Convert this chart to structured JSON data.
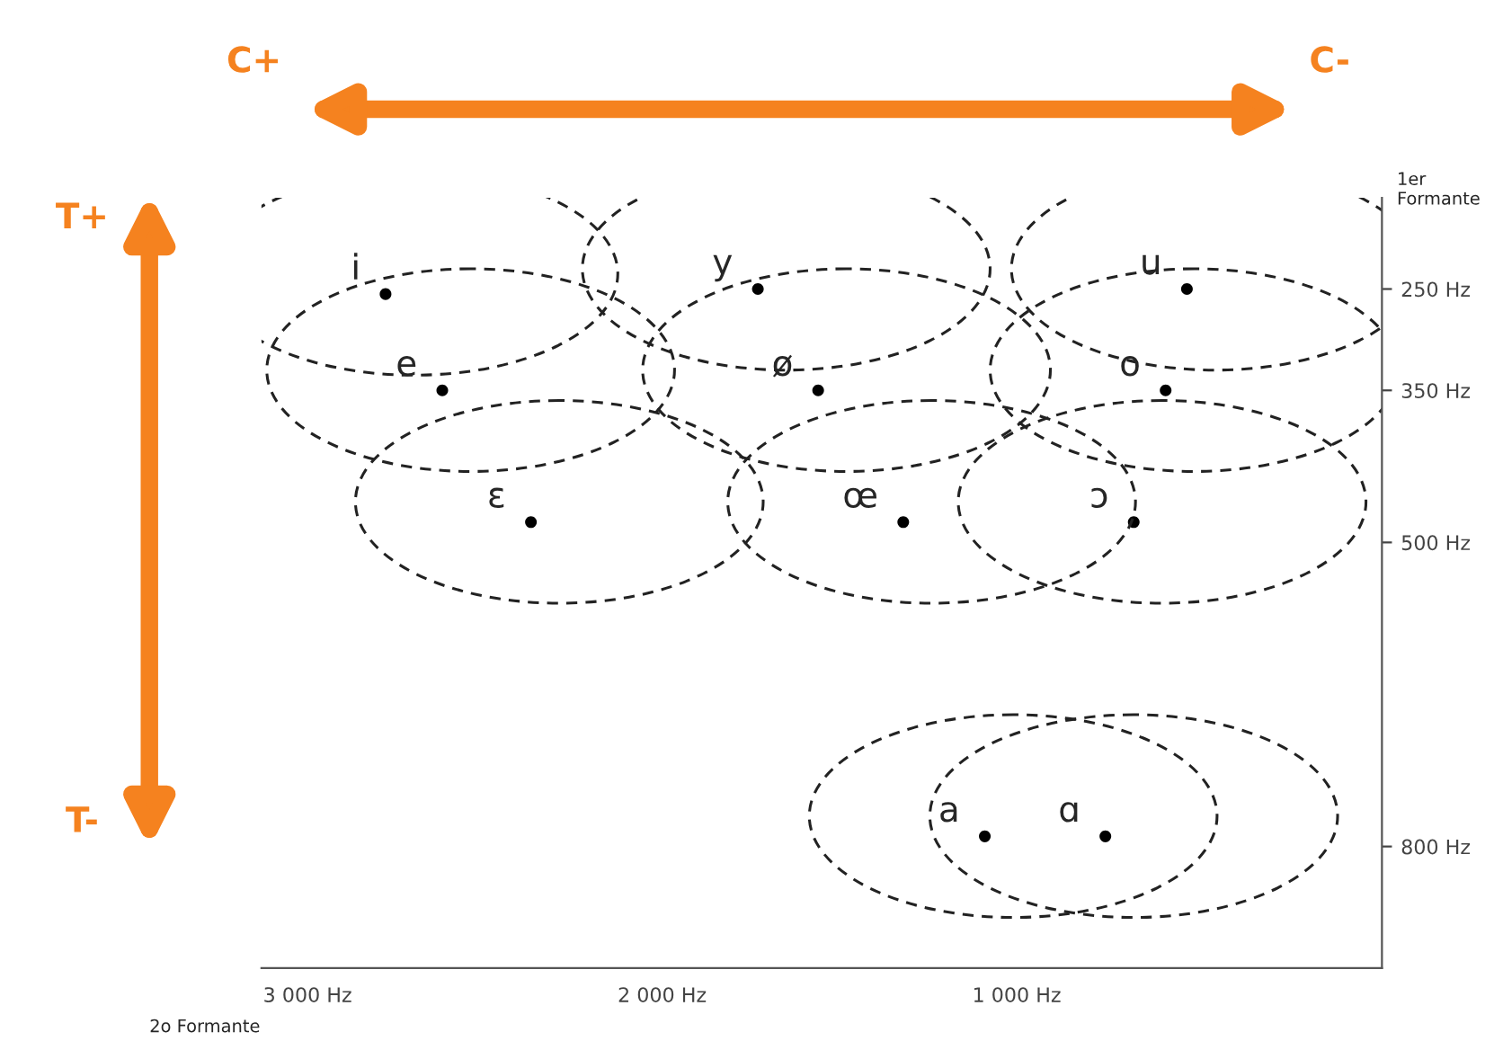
{
  "chart_data": {
    "type": "scatter",
    "xlabel": "2o Formante",
    "ylabel": "1er Formante",
    "x": [
      2780,
      1730,
      520,
      2620,
      1560,
      580,
      2370,
      1320,
      670,
      1090,
      750
    ],
    "series": [
      {
        "color": "#000000",
        "values": [
          255,
          250,
          250,
          350,
          350,
          350,
          480,
          480,
          480,
          790,
          790
        ]
      }
    ],
    "xlim": [
      3130,
      -30
    ],
    "xticks": [
      {
        "value": 3000,
        "label": "3 000 Hz"
      },
      {
        "value": 2000,
        "label": "2 000 Hz"
      },
      {
        "value": 1000,
        "label": "1 000 Hz"
      }
    ],
    "ylim": [
      920,
      160
    ],
    "yticks": [
      {
        "value": 250,
        "label": "250 Hz"
      },
      {
        "value": 350,
        "label": "350 Hz"
      },
      {
        "value": 500,
        "label": "500 Hz"
      },
      {
        "value": 800,
        "label": "800 Hz"
      }
    ],
    "grid": false,
    "legend": false,
    "marker": "circle",
    "annotations": [
      "C+",
      "C-",
      "T+",
      "T-",
      {
        "text": "i",
        "x": 2780,
        "y": 255
      },
      {
        "text": "y",
        "x": 1730,
        "y": 250
      },
      {
        "text": "u",
        "x": 520,
        "y": 250
      },
      {
        "text": "e",
        "x": 2620,
        "y": 350
      },
      {
        "text": "ø",
        "x": 1560,
        "y": 350
      },
      {
        "text": "o",
        "x": 580,
        "y": 350
      },
      {
        "text": "ɛ",
        "x": 2370,
        "y": 480
      },
      {
        "text": "œ",
        "x": 1320,
        "y": 480
      },
      {
        "text": "ɔ",
        "x": 670,
        "y": 480
      },
      {
        "text": "a",
        "x": 1090,
        "y": 790
      },
      {
        "text": "ɑ",
        "x": 750,
        "y": 790
      }
    ]
  }
}
